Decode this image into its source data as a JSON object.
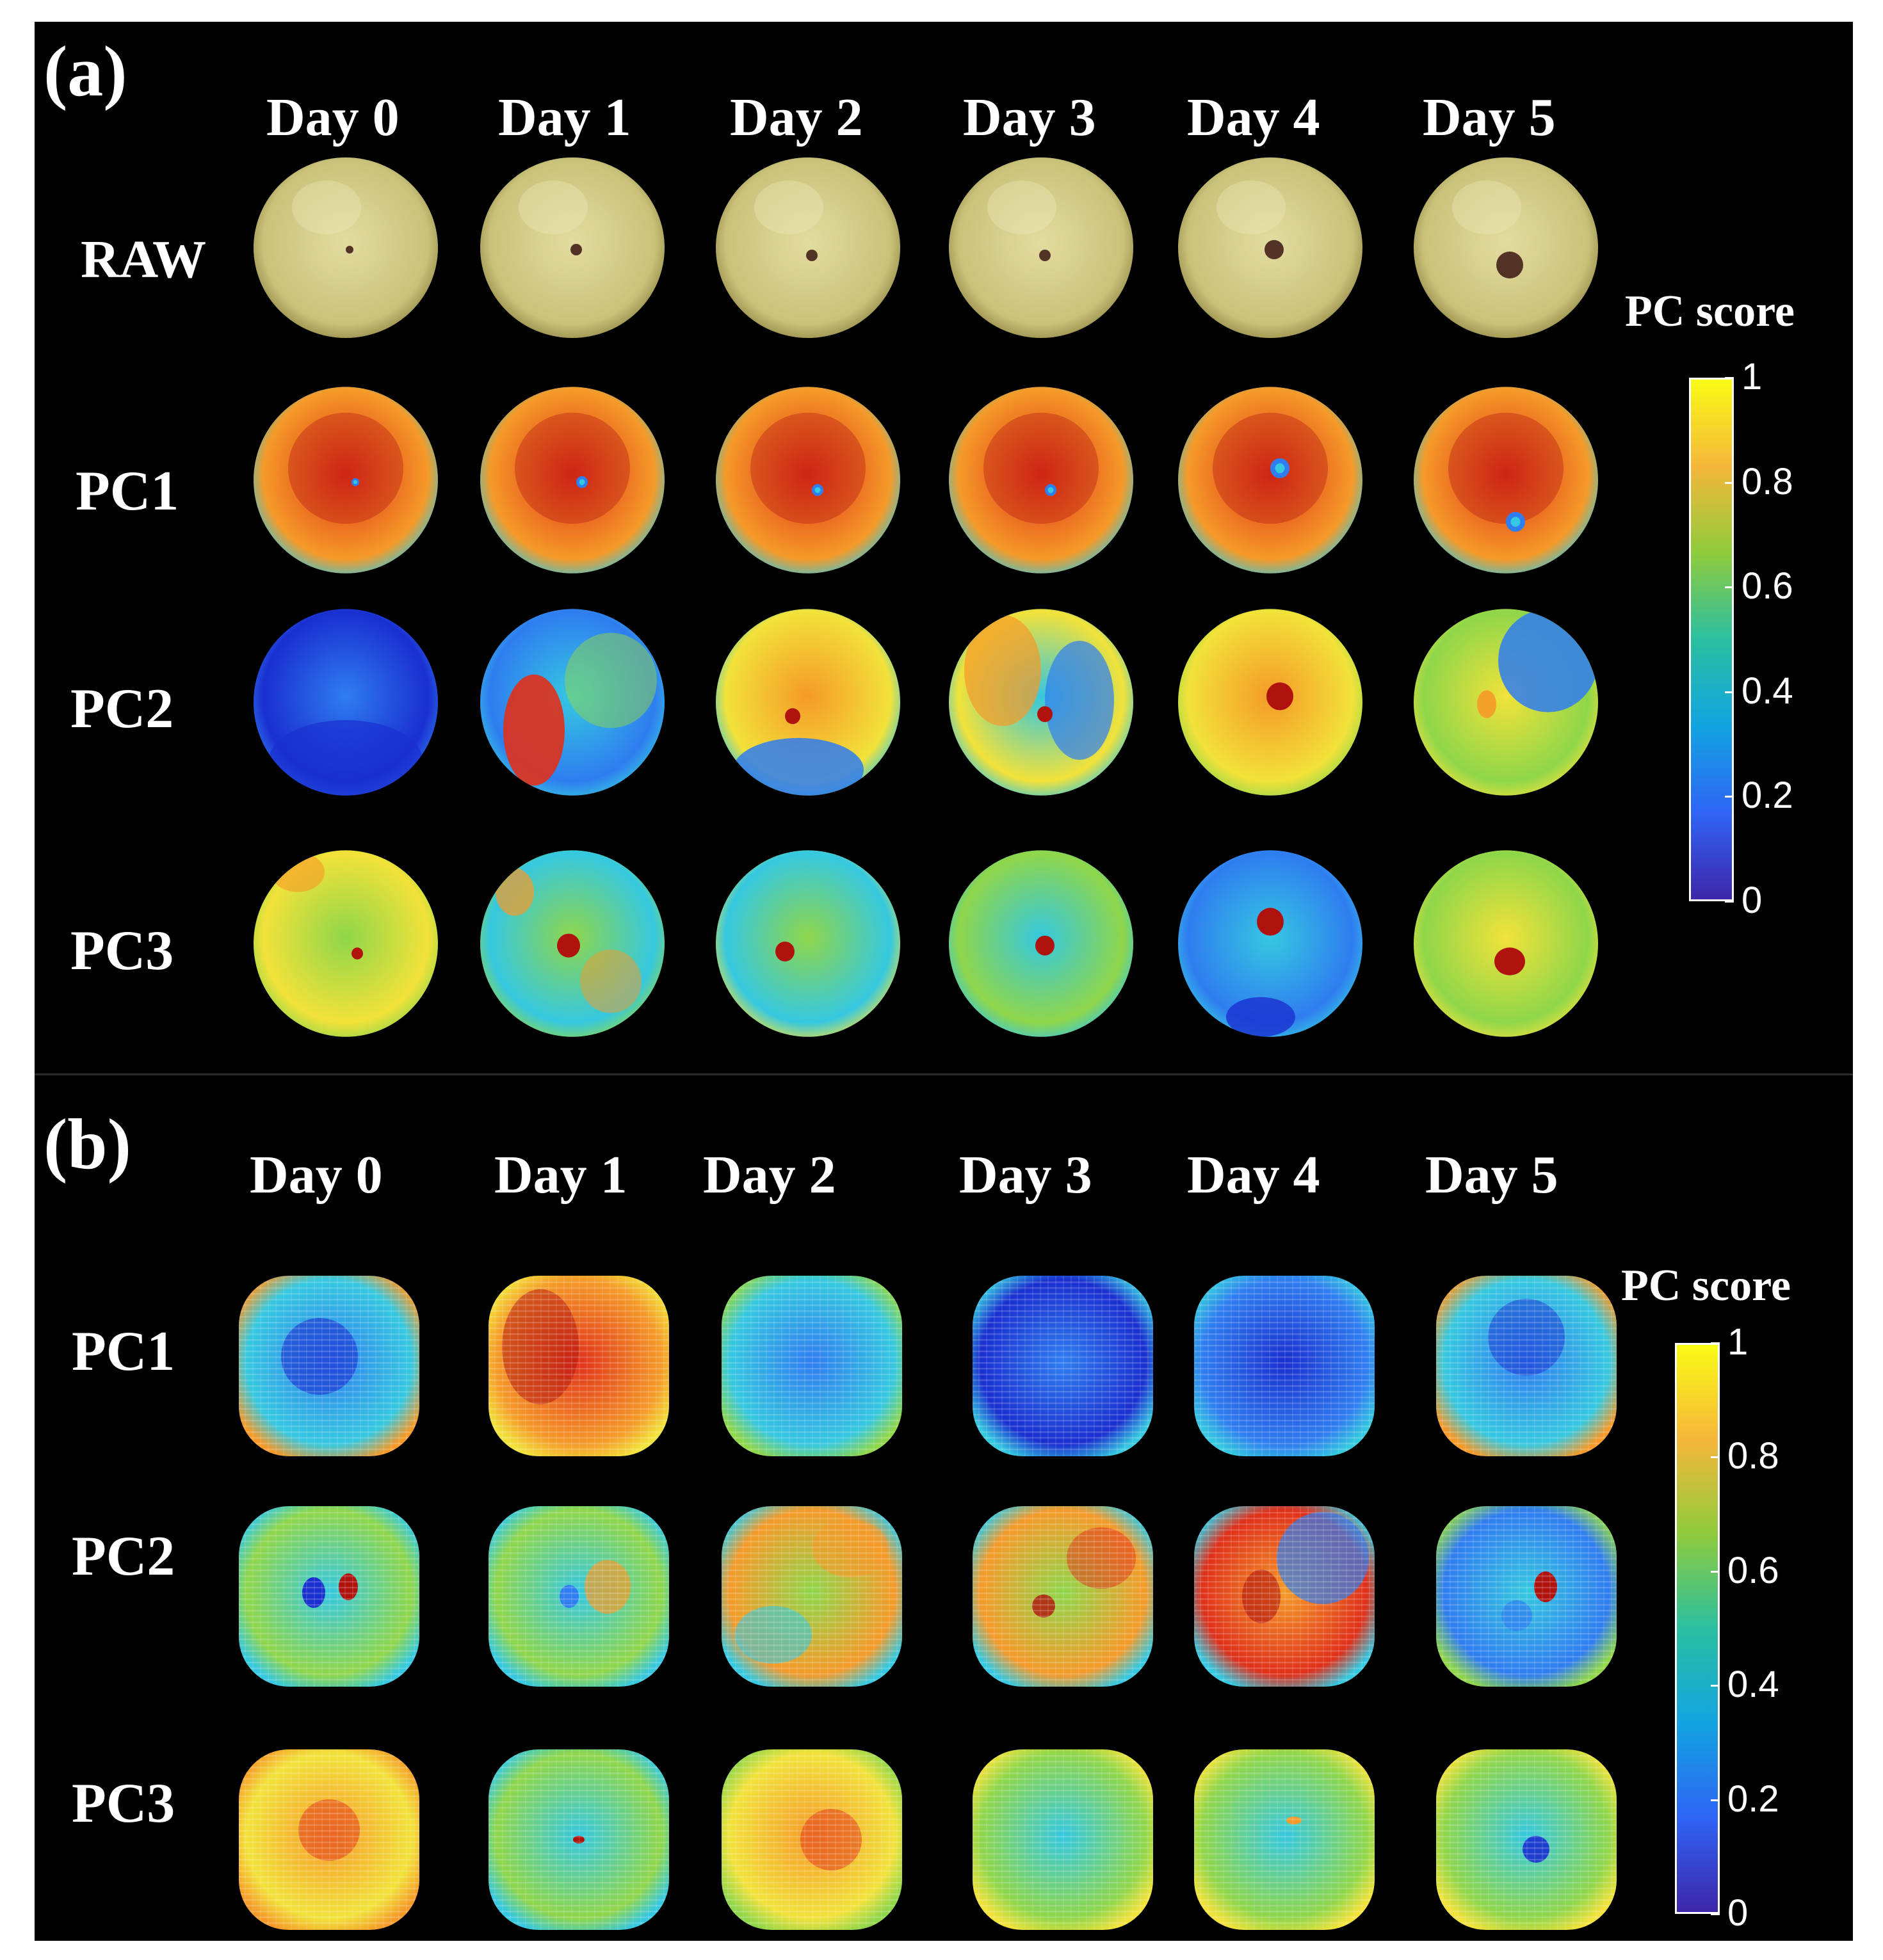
{
  "panel_a": {
    "label": "(a)",
    "days": [
      "Day 0",
      "Day 1",
      "Day 2",
      "Day 3",
      "Day 4",
      "Day 5"
    ],
    "rows": [
      "RAW",
      "PC1",
      "PC2",
      "PC3"
    ],
    "colorbar": {
      "title": "PC score",
      "ticks": [
        "1",
        "0.8",
        "0.6",
        "0.4",
        "0.2",
        "0"
      ]
    }
  },
  "panel_b": {
    "label": "(b)",
    "days": [
      "Day 0",
      "Day 1",
      "Day 2",
      "Day 3",
      "Day 4",
      "Day 5"
    ],
    "rows": [
      "PC1",
      "PC2",
      "PC3"
    ],
    "colorbar": {
      "title": "PC score",
      "ticks": [
        "1",
        "0.8",
        "0.6",
        "0.4",
        "0.2",
        "0"
      ]
    }
  },
  "colormap": [
    "#3e26a8",
    "#2f64f5",
    "#12a4e0",
    "#2bbfa0",
    "#8fcb3c",
    "#f5b73b",
    "#f9fb15"
  ],
  "heatmap_palette": {
    "dark_blue": "#1a2fd0",
    "blue": "#2f7df0",
    "cyan": "#35c8e0",
    "green": "#8fd64a",
    "yellow": "#f2e23a",
    "orange": "#f59a28",
    "red": "#e0301a",
    "dark_red": "#b0120e"
  },
  "raw_palette": {
    "skin": "#c9c27a",
    "skin_dark": "#8a7f3e",
    "spot": "#4a2a20"
  }
}
